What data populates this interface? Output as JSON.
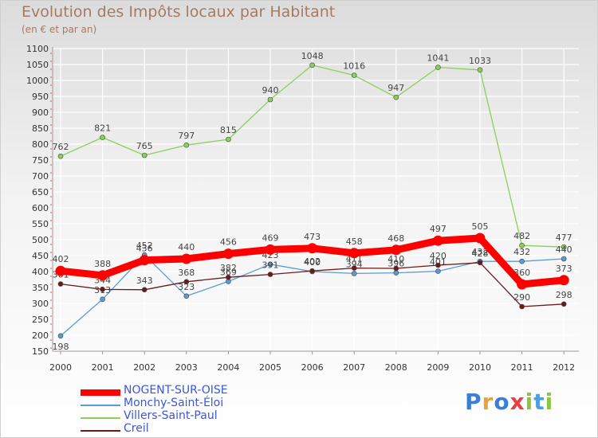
{
  "chart_data": {
    "type": "line",
    "title": "Evolution des Impôts locaux par Habitant",
    "subtitle": "(en € et par an)",
    "xlabel": "",
    "ylabel": "",
    "x": [
      "2000",
      "2001",
      "2002",
      "2003",
      "2004",
      "2005",
      "2006",
      "2007",
      "2008",
      "2009",
      "2010",
      "2011",
      "2012"
    ],
    "ylim": [
      150,
      1100
    ],
    "yticks": [
      150,
      200,
      250,
      300,
      350,
      400,
      450,
      500,
      550,
      600,
      650,
      700,
      750,
      800,
      850,
      900,
      950,
      1000,
      1050,
      1100
    ],
    "legend_position": "bottom-left",
    "series": [
      {
        "name": "NOGENT-SUR-OISE",
        "color": "#ff0000",
        "values": [
          402,
          388,
          436,
          440,
          456,
          469,
          473,
          458,
          468,
          497,
          505,
          360,
          373
        ]
      },
      {
        "name": "Monchy-Saint-Éloi",
        "color": "#5b9bd5",
        "values": [
          198,
          313,
          452,
          323,
          369,
          423,
          400,
          394,
          396,
          401,
          432,
          432,
          440
        ]
      },
      {
        "name": "Villers-Saint-Paul",
        "color": "#8ccf5a",
        "values": [
          762,
          821,
          765,
          797,
          815,
          940,
          1048,
          1016,
          947,
          1041,
          1033,
          482,
          477
        ]
      },
      {
        "name": "Creil",
        "color": "#6b1a1a",
        "values": [
          361,
          344,
          343,
          368,
          382,
          391,
          402,
          411,
          410,
          420,
          428,
          290,
          298
        ]
      }
    ]
  },
  "brand": {
    "text": "Proxiti"
  }
}
